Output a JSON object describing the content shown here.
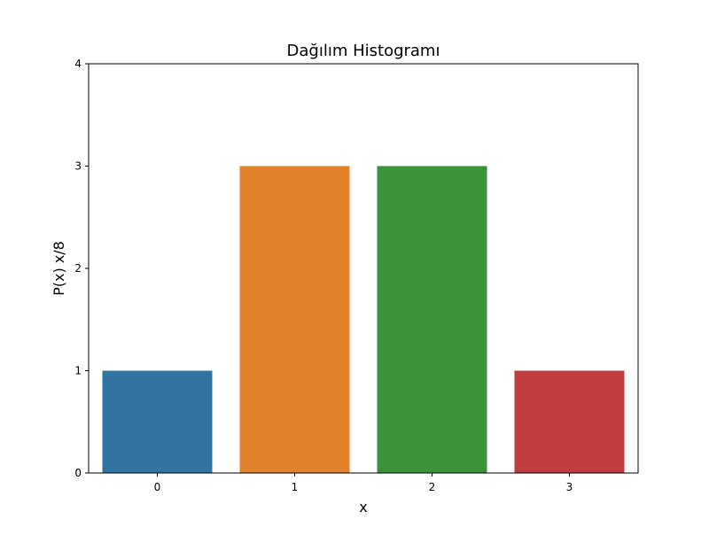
{
  "chart_data": {
    "type": "bar",
    "title": "Dağılım Histogramı",
    "xlabel": "x",
    "ylabel": "P(x) x/8",
    "categories": [
      "0",
      "1",
      "2",
      "3"
    ],
    "values": [
      1,
      3,
      3,
      1
    ],
    "colors": [
      "#3274a1",
      "#e1812c",
      "#3a923a",
      "#c03d3e"
    ],
    "ylim": [
      0,
      4
    ],
    "yticks": [
      "0",
      "1",
      "2",
      "3",
      "4"
    ],
    "grid": false,
    "legend": false
  }
}
